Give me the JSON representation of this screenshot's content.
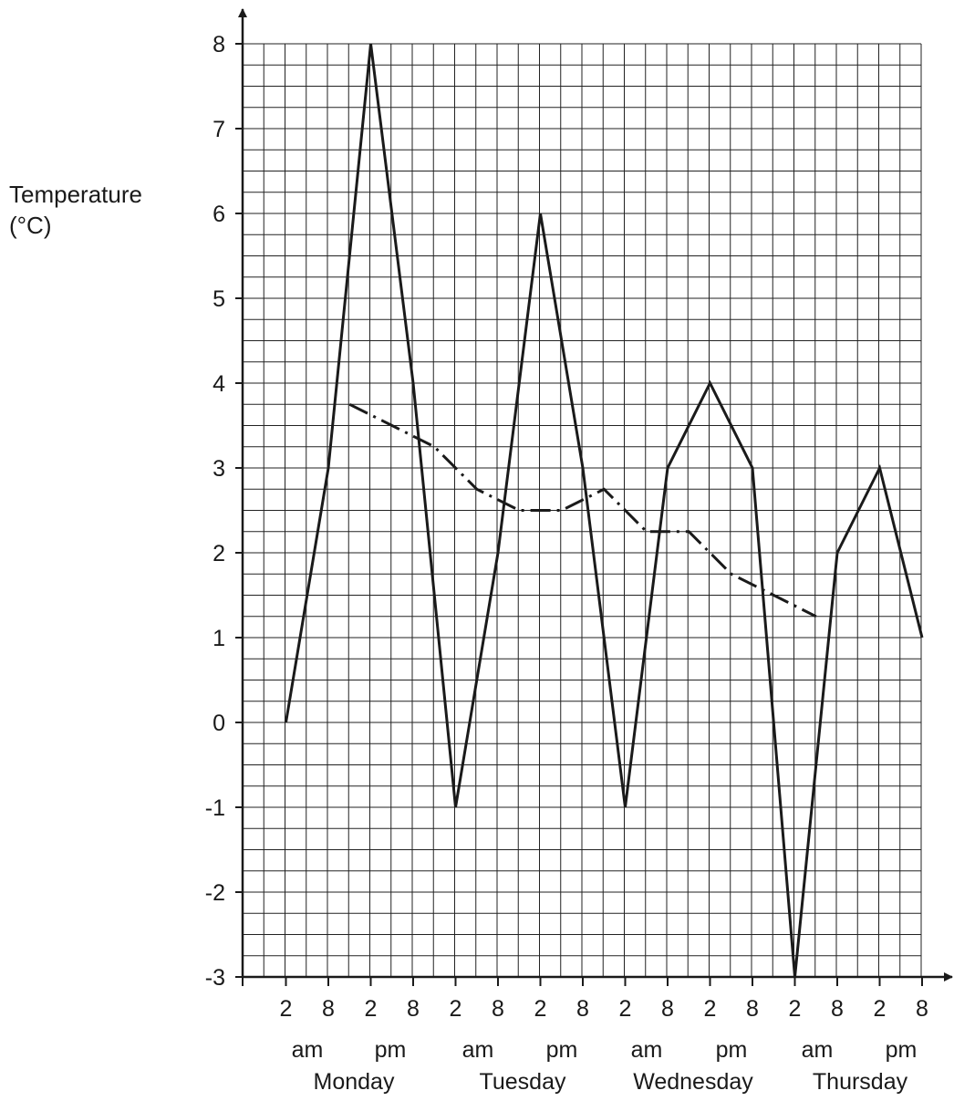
{
  "chart_data": {
    "type": "line",
    "title": "",
    "ylabel": [
      "Temperature",
      "(°C)"
    ],
    "xlabel": "",
    "ylim": [
      -3,
      8
    ],
    "yticks": [
      8,
      7,
      6,
      5,
      4,
      3,
      2,
      1,
      0,
      -1,
      -2,
      -3
    ],
    "grid": true,
    "minor_grid_per_unit": 4,
    "x_ticks": [
      "2",
      "8",
      "2",
      "8",
      "2",
      "8",
      "2",
      "8",
      "2",
      "8",
      "2",
      "8",
      "2",
      "8",
      "2",
      "8"
    ],
    "x_periods": [
      "am",
      "pm",
      "am",
      "pm",
      "am",
      "pm",
      "am",
      "pm"
    ],
    "x_days": [
      "Monday",
      "Tuesday",
      "Wednesday",
      "Thursday"
    ],
    "series": [
      {
        "style": "solid",
        "points": [
          {
            "t": 0,
            "y": 0
          },
          {
            "t": 1,
            "y": 3
          },
          {
            "t": 2,
            "y": 8
          },
          {
            "t": 3,
            "y": 4
          },
          {
            "t": 4,
            "y": -1
          },
          {
            "t": 5,
            "y": 2
          },
          {
            "t": 6,
            "y": 6
          },
          {
            "t": 7,
            "y": 3
          },
          {
            "t": 8,
            "y": -1
          },
          {
            "t": 9,
            "y": 3
          },
          {
            "t": 10,
            "y": 4
          },
          {
            "t": 11,
            "y": 3
          },
          {
            "t": 12,
            "y": -3
          },
          {
            "t": 13,
            "y": 2
          },
          {
            "t": 14,
            "y": 3
          },
          {
            "t": 15,
            "y": 1
          }
        ]
      },
      {
        "style": "dash-dot",
        "points": [
          {
            "t": 1.5,
            "y": 3.75
          },
          {
            "t": 2.5,
            "y": 3.5
          },
          {
            "t": 3.5,
            "y": 3.25
          },
          {
            "t": 4.5,
            "y": 2.75
          },
          {
            "t": 5.5,
            "y": 2.5
          },
          {
            "t": 6.5,
            "y": 2.5
          },
          {
            "t": 7.5,
            "y": 2.75
          },
          {
            "t": 8.5,
            "y": 2.25
          },
          {
            "t": 9.5,
            "y": 2.25
          },
          {
            "t": 10.5,
            "y": 1.75
          },
          {
            "t": 11.5,
            "y": 1.5
          },
          {
            "t": 12.5,
            "y": 1.25
          }
        ]
      }
    ]
  }
}
